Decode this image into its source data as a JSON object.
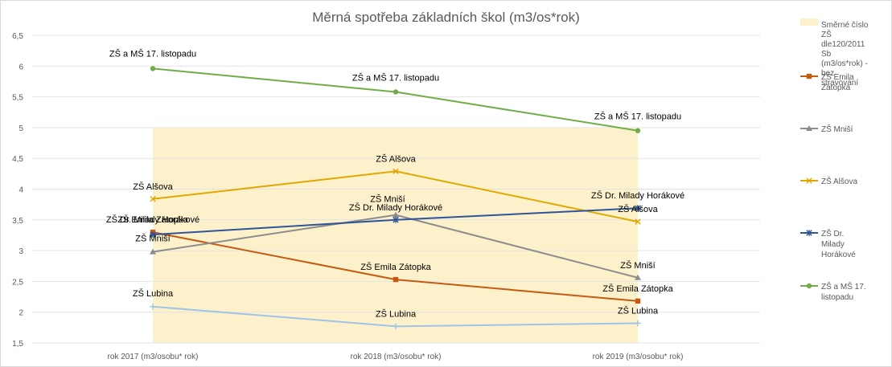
{
  "chart_data": {
    "type": "line",
    "title": "Měrná spotřeba základních škol (m3/os*rok)",
    "xlabel": "",
    "ylabel": "",
    "categories": [
      "rok 2017 (m3/osobu* rok)",
      "rok 2018 (m3/osobu* rok)",
      "rok 2019 (m3/osobu* rok)"
    ],
    "ylim": [
      1.5,
      6.5
    ],
    "yticks": [
      "1,5",
      "2",
      "2,5",
      "3",
      "3,5",
      "4",
      "4,5",
      "5",
      "5,5",
      "6",
      "6,5"
    ],
    "grid": true,
    "legend_position": "right",
    "band": {
      "name": "Směrné číslo ZŠ dle120/2011 Sb (m3/os*rok) - bez stravování",
      "value": 5,
      "color": "#fdf1cc"
    },
    "series": [
      {
        "name": "ZŠ Emila Zátopka",
        "color": "#c55a11",
        "marker": "square",
        "values": [
          3.3,
          2.53,
          2.18
        ],
        "labels": [
          "ZŠ Emila Zátopka",
          "ZŠ Emila Zátopka",
          "ZŠ Emila Zátopka"
        ]
      },
      {
        "name": "ZŠ Mniší",
        "color": "#8c8c8c",
        "marker": "triangle",
        "values": [
          2.98,
          3.58,
          2.56
        ],
        "labels": [
          "ZŠ Mniší",
          "ZŠ Mniší",
          "ZŠ Mniší"
        ]
      },
      {
        "name": "ZŠ Alšova",
        "color": "#e0a800",
        "marker": "x",
        "values": [
          3.84,
          4.29,
          3.47
        ],
        "labels": [
          "ZŠ Alšova",
          "ZŠ Alšova",
          "ZŠ Alšova"
        ]
      },
      {
        "name": "ZŠ Dr. Milady Horákové",
        "color": "#2f5597",
        "marker": "star",
        "values": [
          3.26,
          3.5,
          3.69
        ],
        "labels": [
          "ZŠ Dr. Milady Horákové",
          "ZŠ Dr. Milady Horákové",
          "ZŠ Dr. Milady Horákové"
        ]
      },
      {
        "name": "ZŠ Lubina",
        "color": "#9dc3e6",
        "marker": "plus",
        "legend": false,
        "values": [
          2.09,
          1.77,
          1.82
        ],
        "labels": [
          "ZŠ Lubina",
          "ZŠ Lubina",
          "ZŠ Lubina"
        ]
      },
      {
        "name": "ZŠ a MŠ 17. listopadu",
        "color": "#70ad47",
        "marker": "circle",
        "values": [
          5.96,
          5.58,
          4.95
        ],
        "labels": [
          "ZŠ a MŠ 17. listopadu",
          "ZŠ a MŠ 17. listopadu",
          "ZŠ a MŠ 17. listopadu"
        ]
      }
    ]
  }
}
